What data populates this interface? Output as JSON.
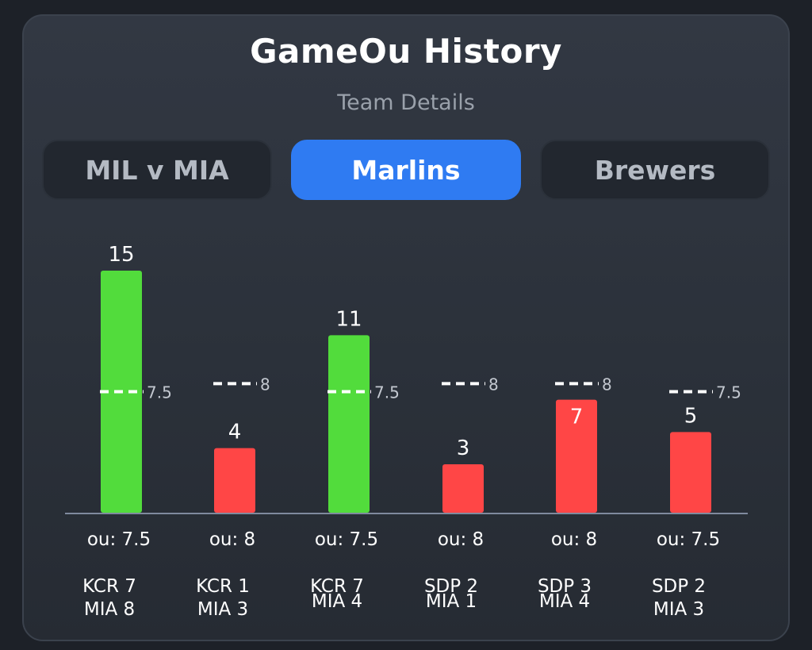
{
  "header": {
    "title": "GameOu History",
    "subtitle": "Team Details"
  },
  "tabs": [
    {
      "label": "MIL v MIA",
      "active": false
    },
    {
      "label": "Marlins",
      "active": true
    },
    {
      "label": "Brewers",
      "active": false
    }
  ],
  "colors": {
    "over": "#52dc3c",
    "under": "#ff4646",
    "active_tab": "#2f7bf2",
    "line": "#ffffff"
  },
  "chart_data": {
    "type": "bar",
    "title": "",
    "ylim": [
      0,
      15
    ],
    "grid": false,
    "categories": [
      "KCR 7 / MIA 8",
      "KCR 1 / MIA 3",
      "KCR 7 / MIA 4",
      "SDP 2 / MIA 1",
      "SDP 3 / MIA 4",
      "SDP 2 / MIA 3"
    ],
    "games": [
      {
        "score_lines": [
          "KCR 7",
          "MIA 8"
        ],
        "total": 15,
        "ou": 7.5,
        "ou_text": "7.5",
        "ou_label": "ou: 7.5",
        "result": "over"
      },
      {
        "score_lines": [
          "KCR 1",
          "MIA 3"
        ],
        "total": 4,
        "ou": 8,
        "ou_text": "8",
        "ou_label": "ou: 8",
        "result": "under"
      },
      {
        "score_lines": [
          "KCR 7",
          "MIA 4"
        ],
        "total": 11,
        "ou": 7.5,
        "ou_text": "7.5",
        "ou_label": "ou: 7.5",
        "result": "over"
      },
      {
        "score_lines": [
          "SDP 2",
          "MIA 1"
        ],
        "total": 3,
        "ou": 8,
        "ou_text": "8",
        "ou_label": "ou: 8",
        "result": "under"
      },
      {
        "score_lines": [
          "SDP 3",
          "MIA 4"
        ],
        "total": 7,
        "ou": 8,
        "ou_text": "8",
        "ou_label": "ou: 8",
        "result": "under"
      },
      {
        "score_lines": [
          "SDP 2",
          "MIA 3"
        ],
        "total": 5,
        "ou": 7.5,
        "ou_text": "7.5",
        "ou_label": "ou: 7.5",
        "result": "under"
      }
    ]
  }
}
